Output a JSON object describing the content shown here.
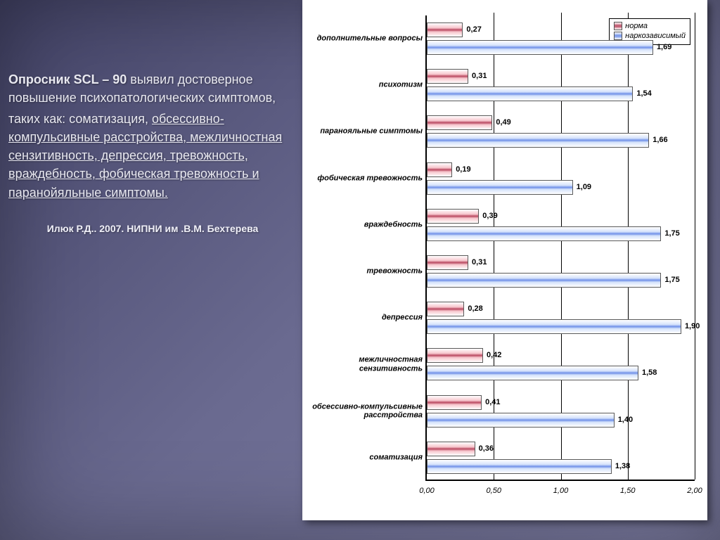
{
  "slide": {
    "paragraph": {
      "bold_lead": "Опросник SCL – 90",
      "rest_1": "  выявил достоверное повышение психопатологических симптомов,",
      "line2_prefix": " таких как: соматизация, ",
      "underlined": "обсессивно-компульсивные расстройства, межличностная сензитивность, депрессия, тревожность, враждебность, фобическая тревожность и паранойяльные симптомы."
    },
    "citation": "Илюк Р.Д.. 2007. НИПНИ им .В.М. Бехтерева"
  },
  "chart": {
    "type": "grouped-horizontal-bar",
    "xlim": [
      0.0,
      2.0
    ],
    "xtick_step": 0.5,
    "xtick_labels": [
      "0,00",
      "0,50",
      "1,00",
      "1,50",
      "2,00"
    ],
    "legend": {
      "series1": {
        "key": "norma",
        "label": "норма",
        "color": "#b94860"
      },
      "series2": {
        "key": "narko",
        "label": "наркозависимый",
        "color": "#6f90e8"
      }
    },
    "background_color": "#ffffff",
    "label_fontsize": 11,
    "categories": [
      {
        "label": "дополнительные вопросы",
        "norma": 0.27,
        "norma_label": "0,27",
        "narko": 1.69,
        "narko_label": "1,69"
      },
      {
        "label": "психотизм",
        "norma": 0.31,
        "norma_label": "0,31",
        "narko": 1.54,
        "narko_label": "1,54"
      },
      {
        "label": "паранояльные симптомы",
        "norma": 0.49,
        "norma_label": "0,49",
        "narko": 1.66,
        "narko_label": "1,66"
      },
      {
        "label": "фобическая тревожность",
        "norma": 0.19,
        "norma_label": "0,19",
        "narko": 1.09,
        "narko_label": "1,09"
      },
      {
        "label": "враждебность",
        "norma": 0.39,
        "norma_label": "0,39",
        "narko": 1.75,
        "narko_label": "1,75"
      },
      {
        "label": "тревожность",
        "norma": 0.31,
        "norma_label": "0,31",
        "narko": 1.75,
        "narko_label": "1,75"
      },
      {
        "label": "депрессия",
        "norma": 0.28,
        "norma_label": "0,28",
        "narko": 1.9,
        "narko_label": "1,90"
      },
      {
        "label": "межличностная сензитивность",
        "norma": 0.42,
        "norma_label": "0,42",
        "narko": 1.58,
        "narko_label": "1,58"
      },
      {
        "label": "обсессивно-компульсивные расстройства",
        "norma": 0.41,
        "norma_label": "0,41",
        "narko": 1.4,
        "narko_label": "1,40"
      },
      {
        "label": "соматизация",
        "norma": 0.36,
        "norma_label": "0,36",
        "narko": 1.38,
        "narko_label": "1,38"
      }
    ]
  }
}
